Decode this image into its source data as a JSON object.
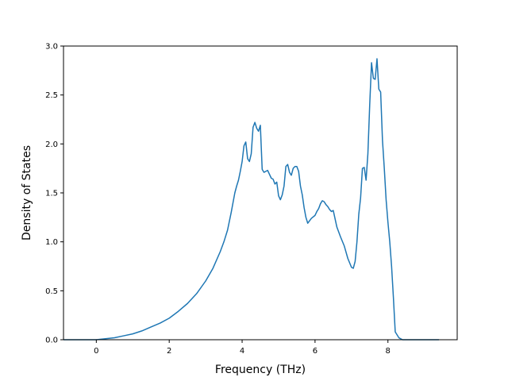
{
  "chart_data": {
    "type": "line",
    "title": "",
    "xlabel": "Frequency (THz)",
    "ylabel": "Density of States",
    "xlim": [
      -0.9,
      9.9
    ],
    "ylim": [
      0.0,
      3.0
    ],
    "xticks": [
      0,
      2,
      4,
      6,
      8
    ],
    "xtick_labels": [
      "0",
      "2",
      "4",
      "6",
      "8"
    ],
    "yticks": [
      0.0,
      0.5,
      1.0,
      1.5,
      2.0,
      2.5,
      3.0
    ],
    "ytick_labels": [
      "0.0",
      "0.5",
      "1.0",
      "1.5",
      "2.0",
      "2.5",
      "3.0"
    ],
    "grid": false,
    "line_color": "#1f77b4",
    "series": [
      {
        "x": [
          -0.9,
          0.0,
          0.25,
          0.5,
          0.75,
          1.0,
          1.25,
          1.5,
          1.75,
          2.0,
          2.25,
          2.5,
          2.75,
          3.0,
          3.2,
          3.4,
          3.5,
          3.6,
          3.7,
          3.8,
          3.85,
          3.9,
          3.95,
          4.0,
          4.05,
          4.1,
          4.15,
          4.2,
          4.25,
          4.3,
          4.35,
          4.4,
          4.45,
          4.5,
          4.55,
          4.6,
          4.7,
          4.8,
          4.85,
          4.9,
          4.95,
          5.0,
          5.05,
          5.1,
          5.15,
          5.2,
          5.25,
          5.3,
          5.35,
          5.4,
          5.45,
          5.5,
          5.55,
          5.6,
          5.65,
          5.7,
          5.75,
          5.8,
          5.9,
          6.0,
          6.05,
          6.1,
          6.15,
          6.2,
          6.25,
          6.3,
          6.35,
          6.4,
          6.45,
          6.5,
          6.6,
          6.7,
          6.8,
          6.9,
          7.0,
          7.05,
          7.1,
          7.15,
          7.2,
          7.25,
          7.3,
          7.35,
          7.4,
          7.45,
          7.5,
          7.55,
          7.6,
          7.65,
          7.7,
          7.75,
          7.8,
          7.85,
          7.9,
          7.95,
          8.0,
          8.05,
          8.1,
          8.15,
          8.2,
          8.3,
          8.4,
          8.5,
          8.55,
          8.6,
          8.7,
          9.0,
          9.4
        ],
        "y": [
          0.0,
          0.0,
          0.01,
          0.02,
          0.04,
          0.06,
          0.09,
          0.13,
          0.17,
          0.22,
          0.29,
          0.37,
          0.47,
          0.6,
          0.73,
          0.9,
          1.0,
          1.12,
          1.3,
          1.5,
          1.57,
          1.63,
          1.72,
          1.82,
          1.98,
          2.02,
          1.85,
          1.82,
          1.9,
          2.17,
          2.22,
          2.16,
          2.13,
          2.19,
          1.74,
          1.71,
          1.73,
          1.65,
          1.64,
          1.59,
          1.61,
          1.47,
          1.43,
          1.48,
          1.57,
          1.77,
          1.79,
          1.71,
          1.68,
          1.75,
          1.77,
          1.77,
          1.72,
          1.57,
          1.48,
          1.35,
          1.25,
          1.19,
          1.24,
          1.27,
          1.31,
          1.34,
          1.39,
          1.42,
          1.41,
          1.38,
          1.36,
          1.33,
          1.31,
          1.32,
          1.15,
          1.05,
          0.96,
          0.83,
          0.74,
          0.73,
          0.8,
          1.0,
          1.28,
          1.45,
          1.75,
          1.76,
          1.63,
          1.9,
          2.4,
          2.83,
          2.67,
          2.66,
          2.87,
          2.56,
          2.53,
          2.04,
          1.75,
          1.43,
          1.2,
          1.0,
          0.75,
          0.43,
          0.08,
          0.02,
          0.0,
          0.0,
          0.0,
          0.0,
          0.0,
          0.0,
          0.0
        ]
      }
    ]
  }
}
